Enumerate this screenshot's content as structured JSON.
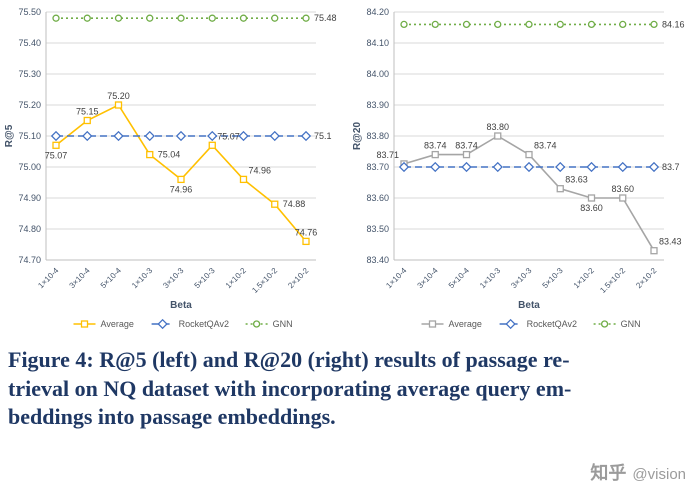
{
  "figure": {
    "caption": "Figure 4: R@5 (left) and R@20 (right) results of passage re-\ntrieval on NQ dataset with incorporating average query em-\nbeddings into passage embeddings.",
    "caption_color": "#1F3864"
  },
  "watermark": {
    "brand": "知乎",
    "handle": "@vision",
    "color": "#9B9B9B"
  },
  "chart_data": [
    {
      "type": "line",
      "title": "",
      "xlabel": "Beta",
      "ylabel": "R@5",
      "ylim": [
        74.7,
        75.5
      ],
      "ytick_step": 0.1,
      "grid": true,
      "legend_position": "bottom",
      "categories": [
        "1×10-4",
        "3×10-4",
        "5×10-4",
        "1×10-3",
        "3×10-3",
        "5×10-3",
        "1×10-2",
        "1.5×10-2",
        "2×10-2"
      ],
      "series": [
        {
          "name": "Average",
          "color": "#FFC000",
          "line_style": "solid",
          "marker": "square",
          "values": [
            75.07,
            75.15,
            75.2,
            75.04,
            74.96,
            75.07,
            74.96,
            74.88,
            74.76
          ],
          "point_labels": [
            "75.07",
            "75.15",
            "75.20",
            "75.04",
            "74.96",
            "75.07",
            "74.96",
            "74.88",
            "74.76"
          ],
          "label_placement": [
            "below",
            "above",
            "above",
            "right",
            "below",
            "above-right",
            "above-right",
            "right",
            "above"
          ]
        },
        {
          "name": "RocketQAv2",
          "color": "#4472C4",
          "line_style": "dashed",
          "marker": "diamond",
          "values": [
            75.1,
            75.1,
            75.1,
            75.1,
            75.1,
            75.1,
            75.1,
            75.1,
            75.1
          ],
          "end_label": "75.1"
        },
        {
          "name": "GNN",
          "color": "#70AD47",
          "line_style": "dotted",
          "marker": "circle",
          "values": [
            75.48,
            75.48,
            75.48,
            75.48,
            75.48,
            75.48,
            75.48,
            75.48,
            75.48
          ],
          "end_label": "75.48"
        }
      ]
    },
    {
      "type": "line",
      "title": "",
      "xlabel": "Beta",
      "ylabel": "R@20",
      "ylim": [
        83.4,
        84.2
      ],
      "ytick_step": 0.1,
      "grid": true,
      "legend_position": "bottom",
      "categories": [
        "1×10-4",
        "3×10-4",
        "5×10-4",
        "1×10-3",
        "3×10-3",
        "5×10-3",
        "1×10-2",
        "1.5×10-2",
        "2×10-2"
      ],
      "series": [
        {
          "name": "Average",
          "color": "#A5A5A5",
          "line_style": "solid",
          "marker": "square",
          "values": [
            83.71,
            83.74,
            83.74,
            83.8,
            83.74,
            83.63,
            83.6,
            83.6,
            83.43
          ],
          "point_labels": [
            "83.71",
            "83.74",
            "83.74",
            "83.80",
            "83.74",
            "83.63",
            "83.60",
            "83.60",
            "83.43"
          ],
          "label_placement": [
            "above-left",
            "above",
            "above",
            "above",
            "above-right",
            "above-right",
            "below",
            "above",
            "above-right"
          ]
        },
        {
          "name": "RocketQAv2",
          "color": "#4472C4",
          "line_style": "dashed",
          "marker": "diamond",
          "values": [
            83.7,
            83.7,
            83.7,
            83.7,
            83.7,
            83.7,
            83.7,
            83.7,
            83.7
          ],
          "end_label": "83.7"
        },
        {
          "name": "GNN",
          "color": "#70AD47",
          "line_style": "dotted",
          "marker": "circle",
          "values": [
            84.16,
            84.16,
            84.16,
            84.16,
            84.16,
            84.16,
            84.16,
            84.16,
            84.16
          ],
          "end_label": "84.16"
        }
      ]
    }
  ]
}
